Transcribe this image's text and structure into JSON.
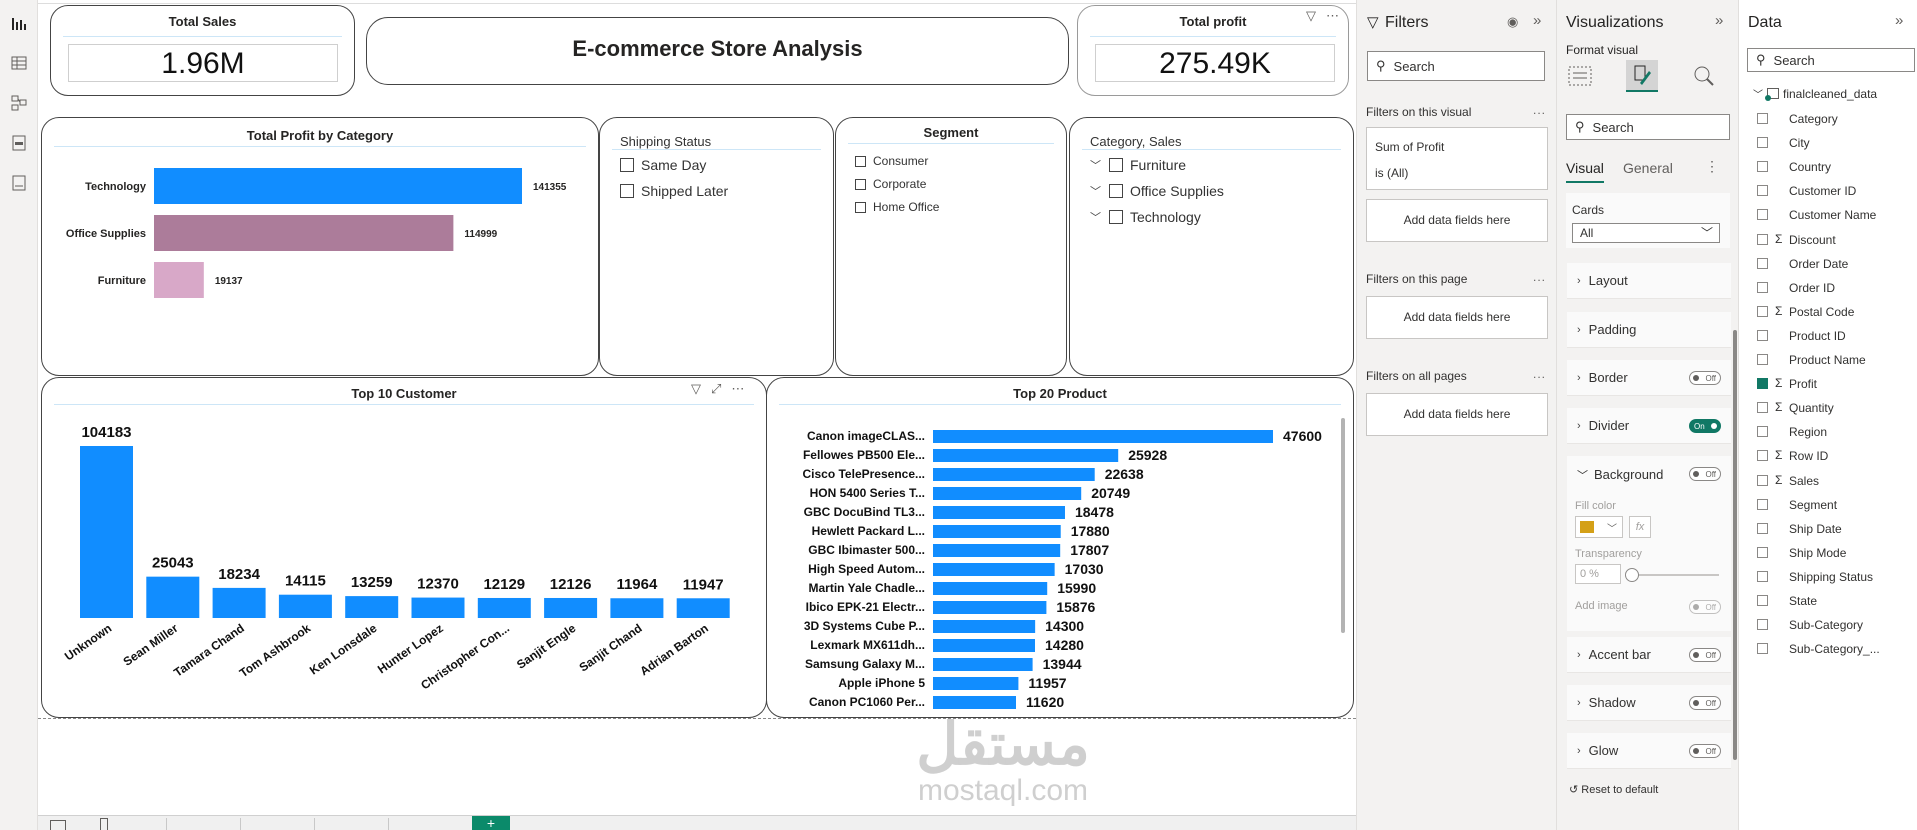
{
  "kpi": {
    "total_sales": {
      "title": "Total Sales",
      "value": "1.96M"
    },
    "total_profit": {
      "title": "Total profit",
      "value": "275.49K"
    }
  },
  "report_title": "E-commerce Store Analysis",
  "profit_by_category": {
    "title": "Total Profit by Category",
    "chart_data": {
      "type": "bar",
      "orientation": "horizontal",
      "categories": [
        "Technology",
        "Office Supplies",
        "Furniture"
      ],
      "values": [
        141355,
        114999,
        19137
      ],
      "colors": [
        "#118DFF",
        "#AC7C9A",
        "#D8A8C8"
      ]
    }
  },
  "shipping_status": {
    "title": "Shipping Status",
    "options": [
      "Same Day",
      "Shipped Later"
    ]
  },
  "segment": {
    "title": "Segment",
    "options": [
      "Consumer",
      "Corporate",
      "Home Office"
    ]
  },
  "category_sales": {
    "title": "Category, Sales",
    "options": [
      "Furniture",
      "Office Supplies",
      "Technology"
    ]
  },
  "top_customers": {
    "title": "Top 10 Customer",
    "chart_data": {
      "type": "bar",
      "categories": [
        "Unknown",
        "Sean Miller",
        "Tamara Chand",
        "Tom Ashbrook",
        "Ken Lonsdale",
        "Hunter Lopez",
        "Christopher Con...",
        "Sanjit Engle",
        "Sanjit Chand",
        "Adrian Barton"
      ],
      "values": [
        104183,
        25043,
        18234,
        14115,
        13259,
        12370,
        12129,
        12126,
        11964,
        11947
      ],
      "color": "#118DFF"
    }
  },
  "top_products": {
    "title": "Top 20 Product",
    "chart_data": {
      "type": "bar",
      "orientation": "horizontal",
      "categories": [
        "Canon imageCLAS...",
        "Fellowes PB500 Ele...",
        "Cisco TelePresence...",
        "HON 5400 Series T...",
        "GBC DocuBind TL3...",
        "Hewlett Packard L...",
        "GBC Ibimaster 500...",
        "High Speed Autom...",
        "Martin Yale Chadle...",
        "Ibico EPK-21 Electr...",
        "3D Systems Cube P...",
        "Lexmark MX611dh...",
        "Samsung Galaxy M...",
        "Apple iPhone 5",
        "Canon PC1060 Per..."
      ],
      "values": [
        47600,
        25928,
        22638,
        20749,
        18478,
        17880,
        17807,
        17030,
        15990,
        15876,
        14300,
        14280,
        13944,
        11957,
        11620
      ],
      "color": "#118DFF"
    }
  },
  "filters_pane": {
    "title": "Filters",
    "search_placeholder": "Search",
    "on_visual_label": "Filters on this visual",
    "sum_of_profit": "Sum of Profit",
    "is_all": "is (All)",
    "add_fields": "Add data fields here",
    "on_page_label": "Filters on this page",
    "all_pages_label": "Filters on all pages",
    "dots": "..."
  },
  "viz_pane": {
    "title": "Visualizations",
    "format_visual": "Format visual",
    "search_placeholder": "Search",
    "tab_visual": "Visual",
    "tab_general": "General",
    "cards_label": "Cards",
    "cards_value": "All",
    "sections": [
      {
        "label": "Layout",
        "toggle": ""
      },
      {
        "label": "Padding",
        "toggle": ""
      },
      {
        "label": "Border",
        "toggle": "Off"
      },
      {
        "label": "Divider",
        "toggle": "On"
      }
    ],
    "background": {
      "label": "Background",
      "toggle": "Off",
      "fill_color": "Fill color",
      "fill_swatch": "#D4A017",
      "transparency": "Transparency",
      "transparency_value": "0 %",
      "add_image": "Add image",
      "add_image_toggle": "Off"
    },
    "more_sections": [
      {
        "label": "Accent bar",
        "toggle": "Off"
      },
      {
        "label": "Shadow",
        "toggle": "Off"
      },
      {
        "label": "Glow",
        "toggle": "Off"
      }
    ],
    "reset": "Reset to default"
  },
  "data_pane": {
    "title": "Data",
    "search_placeholder": "Search",
    "table_name": "finalcleaned_data",
    "fields": [
      {
        "name": "Category",
        "sigma": false,
        "checked": false
      },
      {
        "name": "City",
        "sigma": false,
        "checked": false
      },
      {
        "name": "Country",
        "sigma": false,
        "checked": false
      },
      {
        "name": "Customer ID",
        "sigma": false,
        "checked": false
      },
      {
        "name": "Customer Name",
        "sigma": false,
        "checked": false
      },
      {
        "name": "Discount",
        "sigma": true,
        "checked": false
      },
      {
        "name": "Order Date",
        "sigma": false,
        "checked": false
      },
      {
        "name": "Order ID",
        "sigma": false,
        "checked": false
      },
      {
        "name": "Postal Code",
        "sigma": true,
        "checked": false
      },
      {
        "name": "Product ID",
        "sigma": false,
        "checked": false
      },
      {
        "name": "Product Name",
        "sigma": false,
        "checked": false
      },
      {
        "name": "Profit",
        "sigma": true,
        "checked": true
      },
      {
        "name": "Quantity",
        "sigma": true,
        "checked": false
      },
      {
        "name": "Region",
        "sigma": false,
        "checked": false
      },
      {
        "name": "Row ID",
        "sigma": true,
        "checked": false
      },
      {
        "name": "Sales",
        "sigma": true,
        "checked": false
      },
      {
        "name": "Segment",
        "sigma": false,
        "checked": false
      },
      {
        "name": "Ship Date",
        "sigma": false,
        "checked": false
      },
      {
        "name": "Ship Mode",
        "sigma": false,
        "checked": false
      },
      {
        "name": "Shipping Status",
        "sigma": false,
        "checked": false
      },
      {
        "name": "State",
        "sigma": false,
        "checked": false
      },
      {
        "name": "Sub-Category",
        "sigma": false,
        "checked": false
      },
      {
        "name": "Sub-Category_...",
        "sigma": false,
        "checked": false
      }
    ]
  },
  "watermark": {
    "arabic": "مستقل",
    "latin": "mostaql.com"
  }
}
